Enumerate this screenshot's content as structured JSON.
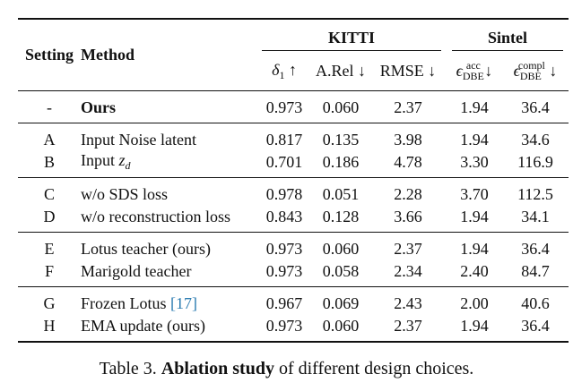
{
  "table": {
    "header": {
      "setting": "Setting",
      "method": "Method",
      "kitti": "KITTI",
      "sintel": "Sintel",
      "cols": [
        "δ1 ↑",
        "A.Rel ↓",
        "RMSE ↓",
        "ε_DBE^acc ↓",
        "ε_DBE^compl ↓"
      ]
    },
    "groups": [
      {
        "rows": [
          {
            "setting": "-",
            "method": "Ours",
            "d1": "0.973",
            "arel": "0.060",
            "rmse": "2.37",
            "acc": "1.94",
            "compl": "36.4"
          }
        ]
      },
      {
        "rows": [
          {
            "setting": "A",
            "method": "Input Noise latent",
            "d1": "0.817",
            "arel": "0.135",
            "rmse": "3.98",
            "acc": "1.94",
            "compl": "34.6"
          },
          {
            "setting": "B",
            "method": "Input",
            "method_var": "zd",
            "d1": "0.701",
            "arel": "0.186",
            "rmse": "4.78",
            "acc": "3.30",
            "compl": "116.9"
          }
        ]
      },
      {
        "rows": [
          {
            "setting": "C",
            "method": "w/o SDS loss",
            "d1": "0.978",
            "arel": "0.051",
            "rmse": "2.28",
            "acc": "3.70",
            "compl": "112.5"
          },
          {
            "setting": "D",
            "method": "w/o reconstruction loss",
            "d1": "0.843",
            "arel": "0.128",
            "rmse": "3.66",
            "acc": "1.94",
            "compl": "34.1"
          }
        ]
      },
      {
        "rows": [
          {
            "setting": "E",
            "method": "Lotus teacher (ours)",
            "d1": "0.973",
            "arel": "0.060",
            "rmse": "2.37",
            "acc": "1.94",
            "compl": "36.4"
          },
          {
            "setting": "F",
            "method": "Marigold teacher",
            "d1": "0.973",
            "arel": "0.058",
            "rmse": "2.34",
            "acc": "2.40",
            "compl": "84.7"
          }
        ]
      },
      {
        "rows": [
          {
            "setting": "G",
            "method": "Frozen Lotus",
            "method_ref": "[17]",
            "d1": "0.967",
            "arel": "0.069",
            "rmse": "2.43",
            "acc": "2.00",
            "compl": "40.6"
          },
          {
            "setting": "H",
            "method": "EMA update (ours)",
            "d1": "0.973",
            "arel": "0.060",
            "rmse": "2.37",
            "acc": "1.94",
            "compl": "36.4"
          }
        ]
      }
    ]
  },
  "caption": {
    "prefix": "Table 3.",
    "bold": "Ablation study",
    "rest": "of different design choices."
  }
}
